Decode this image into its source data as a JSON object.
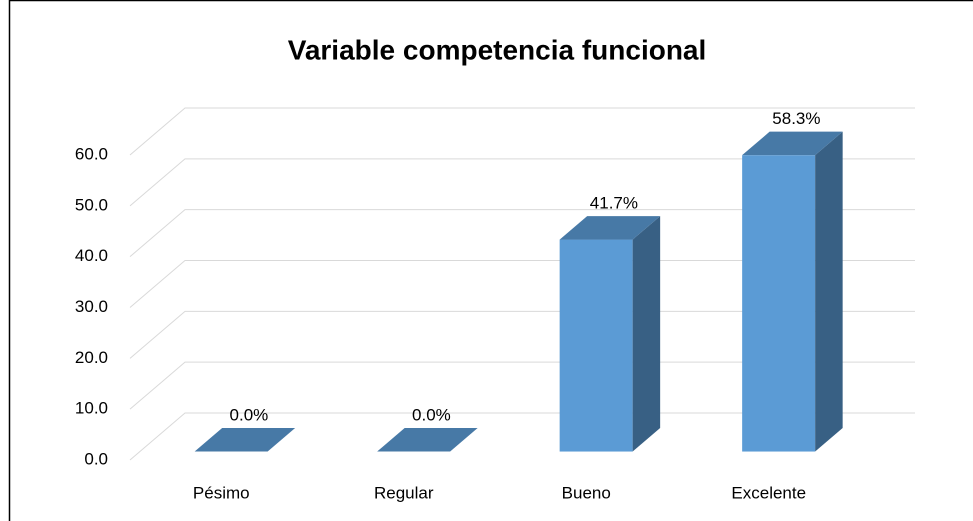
{
  "chart_data": {
    "type": "bar3d",
    "title": "Variable competencia funcional",
    "categories": [
      "Pésimo",
      "Regular",
      "Bueno",
      "Excelente"
    ],
    "values": [
      0,
      0,
      41.7,
      58.3
    ],
    "value_labels": [
      "0.0%",
      "0.0%",
      "41.7%",
      "58.3%"
    ],
    "color": "#5b9bd5",
    "ylim": [
      0,
      60
    ],
    "yticks": [
      {
        "value": 0,
        "label": "0.0"
      },
      {
        "value": 10,
        "label": "10.0"
      },
      {
        "value": 20,
        "label": "20.0"
      },
      {
        "value": 30,
        "label": "30.0"
      },
      {
        "value": 40,
        "label": "40.0"
      },
      {
        "value": 50,
        "label": "50.0"
      },
      {
        "value": 60,
        "label": "60.0"
      }
    ],
    "grid": true
  }
}
